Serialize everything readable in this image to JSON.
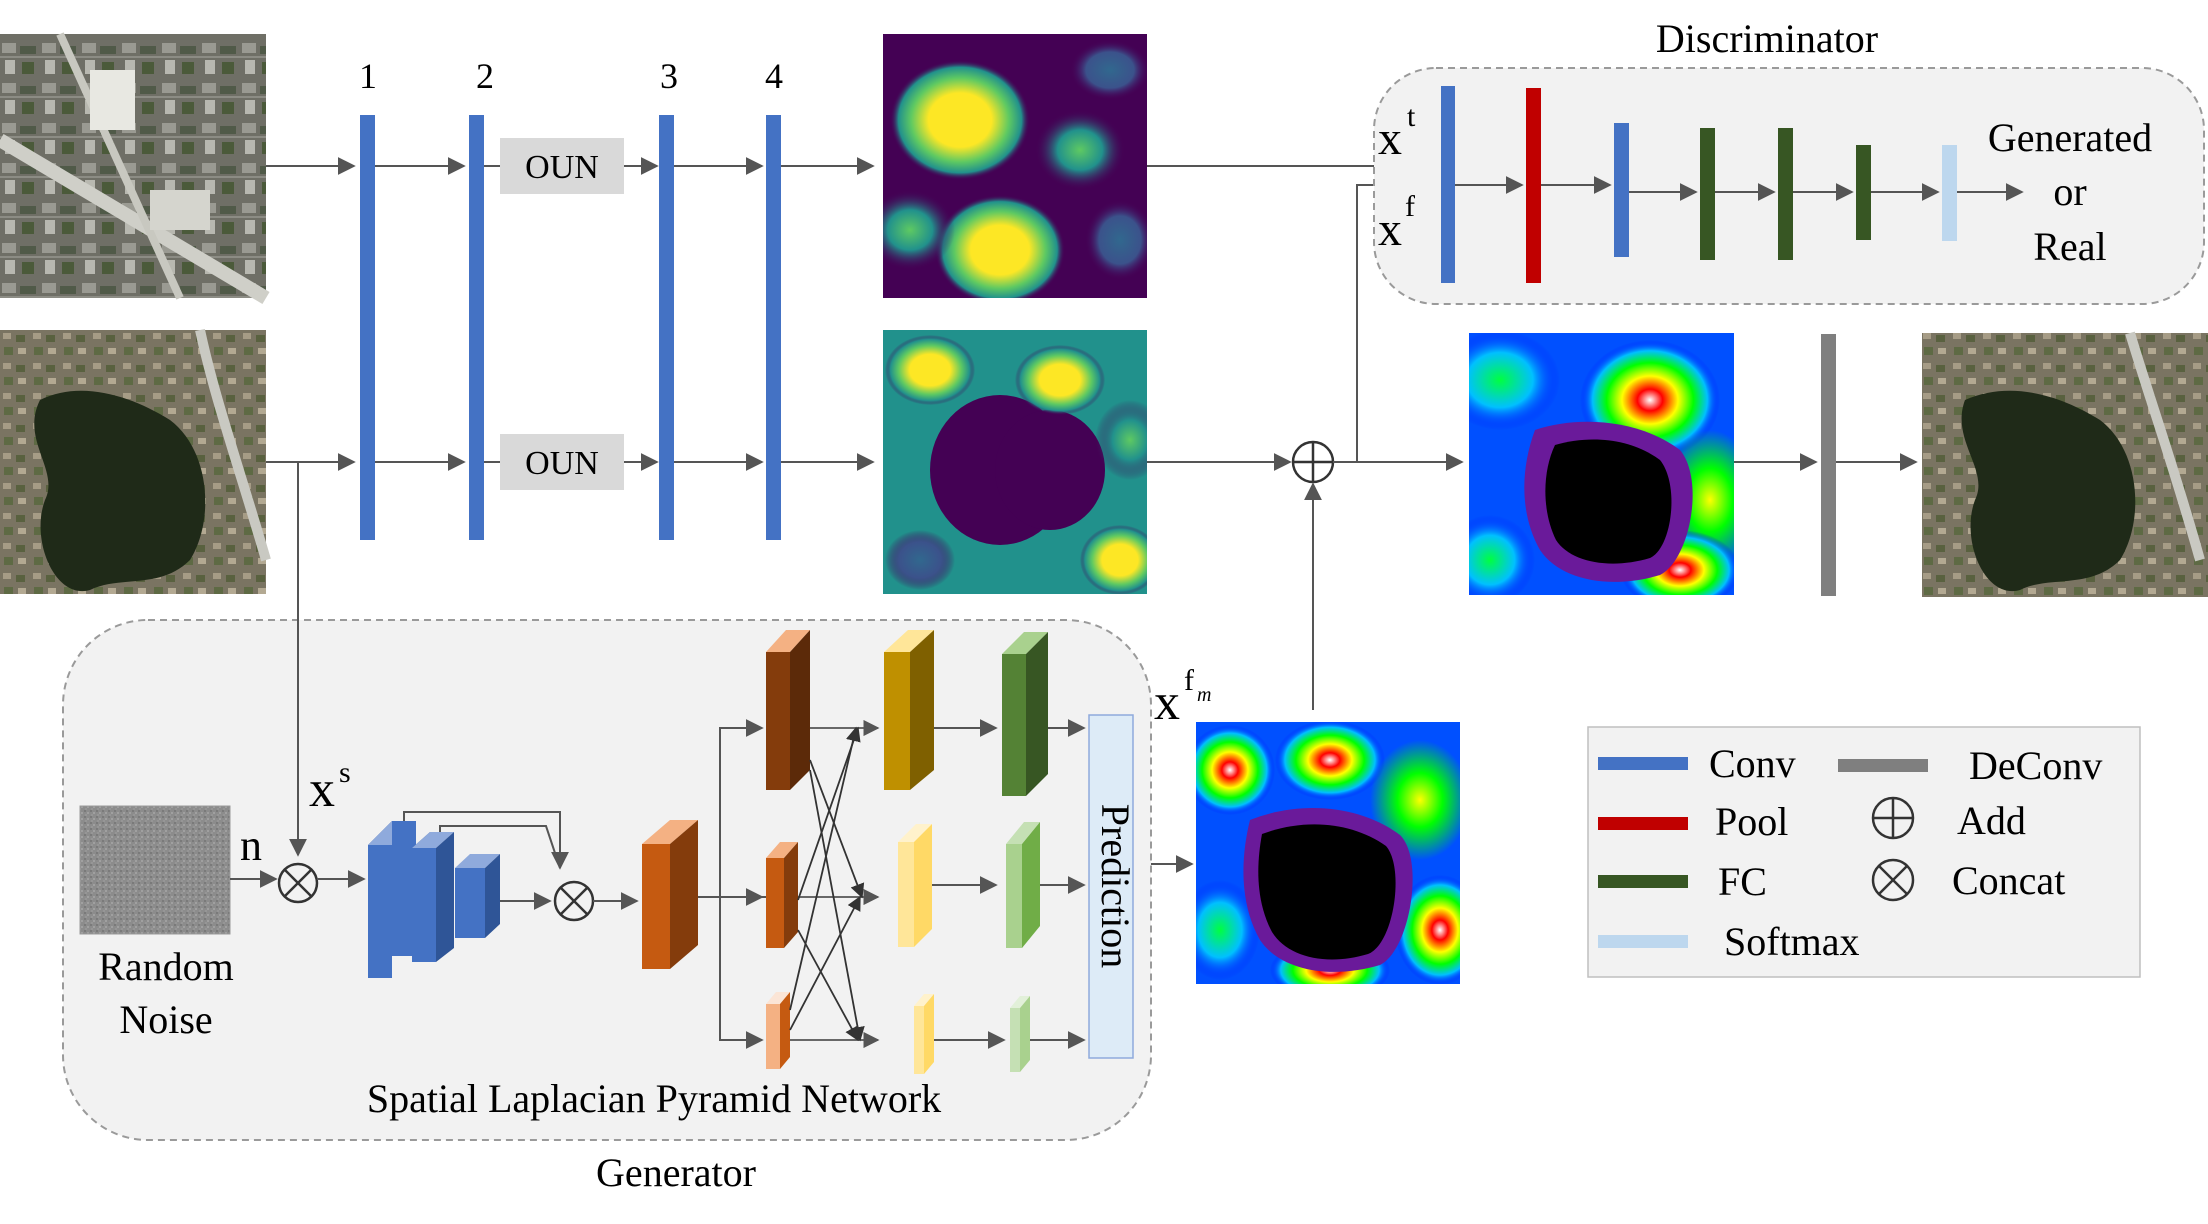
{
  "layer_numbers": [
    "1",
    "2",
    "3",
    "4"
  ],
  "oun_label": "OUN",
  "discriminator": {
    "title": "Discriminator",
    "input_top": "x",
    "input_top_sup": "t",
    "input_bottom": "x",
    "input_bottom_sup": "f",
    "output_line1": "Generated",
    "output_line2": "or",
    "output_line3": "Real"
  },
  "generator": {
    "title": "Generator",
    "subtitle": "Spatial Laplacian Pyramid Network",
    "noise_label_line1": "Random",
    "noise_label_line2": "Noise",
    "noise_symbol": "n",
    "xs_label": "x",
    "xs_sup": "s",
    "prediction_label": "Prediction",
    "xfm_label": "x",
    "xfm_sup": "f",
    "xfm_sub": "m"
  },
  "legend": {
    "items": [
      {
        "label": "Conv",
        "color": "#4472c4"
      },
      {
        "label": "Pool",
        "color": "#c00000"
      },
      {
        "label": "FC",
        "color": "#375623"
      },
      {
        "label": "Softmax",
        "color": "#bdd7ee"
      },
      {
        "label": "DeConv",
        "color": "#7f7f7f"
      },
      {
        "label": "Add",
        "symbol": "circle-plus"
      },
      {
        "label": "Concat",
        "symbol": "circle-times"
      }
    ]
  },
  "colors": {
    "conv": "#4472c4",
    "pool": "#c00000",
    "fc": "#375623",
    "softmax": "#bdd7ee",
    "deconv": "#7f7f7f",
    "panel_bg": "#f2f2f2",
    "oun_bg": "#d9d9d9"
  }
}
